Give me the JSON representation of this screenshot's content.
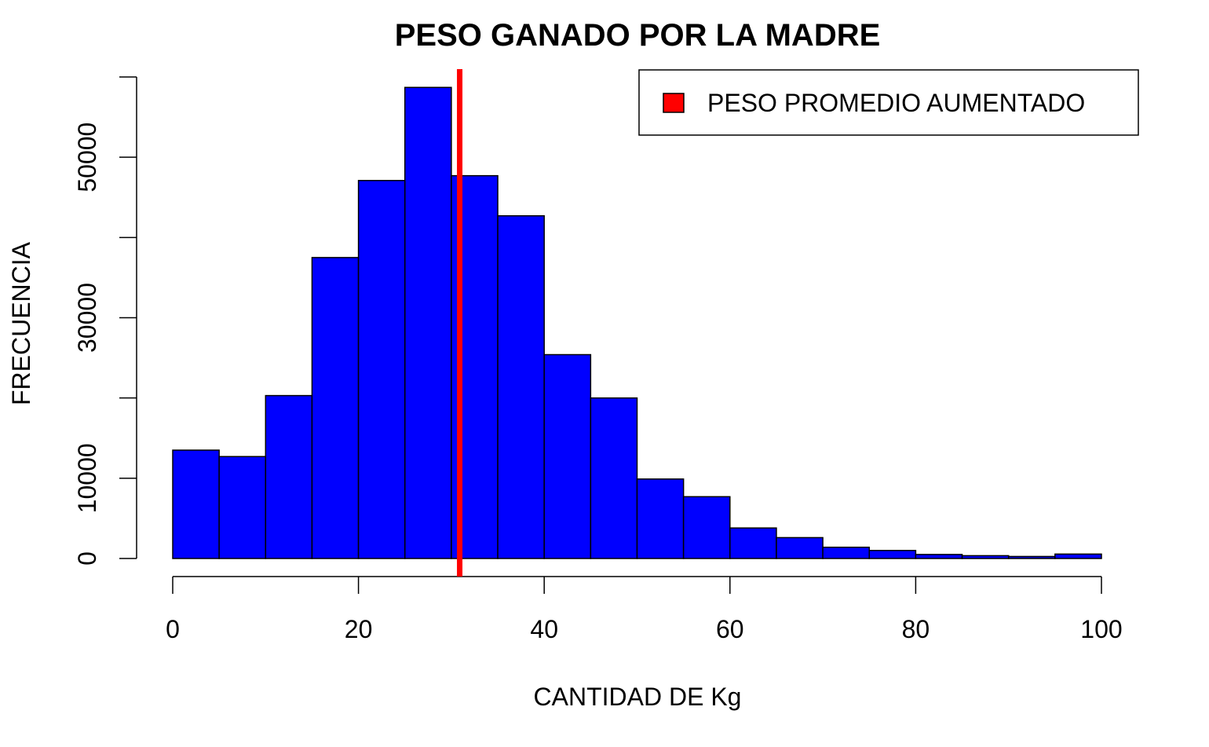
{
  "chart_data": {
    "type": "bar",
    "subtype": "histogram",
    "title": "PESO GANADO POR LA MADRE",
    "xlabel": "CANTIDAD DE Kg",
    "ylabel": "FRECUENCIA",
    "bin_width": 5,
    "bins": [
      {
        "x0": 0,
        "x1": 5,
        "count": 13500
      },
      {
        "x0": 5,
        "x1": 10,
        "count": 12700
      },
      {
        "x0": 10,
        "x1": 15,
        "count": 20300
      },
      {
        "x0": 15,
        "x1": 20,
        "count": 37500
      },
      {
        "x0": 20,
        "x1": 25,
        "count": 47100
      },
      {
        "x0": 25,
        "x1": 30,
        "count": 58700
      },
      {
        "x0": 30,
        "x1": 35,
        "count": 47700
      },
      {
        "x0": 35,
        "x1": 40,
        "count": 42700
      },
      {
        "x0": 40,
        "x1": 45,
        "count": 25400
      },
      {
        "x0": 45,
        "x1": 50,
        "count": 20000
      },
      {
        "x0": 50,
        "x1": 55,
        "count": 9900
      },
      {
        "x0": 55,
        "x1": 60,
        "count": 7700
      },
      {
        "x0": 60,
        "x1": 65,
        "count": 3800
      },
      {
        "x0": 65,
        "x1": 70,
        "count": 2600
      },
      {
        "x0": 70,
        "x1": 75,
        "count": 1400
      },
      {
        "x0": 75,
        "x1": 80,
        "count": 1000
      },
      {
        "x0": 80,
        "x1": 85,
        "count": 500
      },
      {
        "x0": 85,
        "x1": 90,
        "count": 350
      },
      {
        "x0": 90,
        "x1": 95,
        "count": 250
      },
      {
        "x0": 95,
        "x1": 100,
        "count": 550
      }
    ],
    "xticks": [
      0,
      20,
      40,
      60,
      80,
      100
    ],
    "yticks": [
      0,
      10000,
      20000,
      30000,
      40000,
      50000,
      60000
    ],
    "yticks_labeled": [
      0,
      10000,
      30000,
      50000
    ],
    "xlim": [
      0,
      100
    ],
    "ylim": [
      0,
      60000
    ],
    "mean_line": {
      "x": 30.9,
      "color": "#ff0000"
    },
    "bar_color": "#0000ff",
    "legend": {
      "position": "top-right",
      "entries": [
        {
          "label": "PESO PROMEDIO AUMENTADO",
          "color": "#ff0000"
        }
      ]
    }
  }
}
